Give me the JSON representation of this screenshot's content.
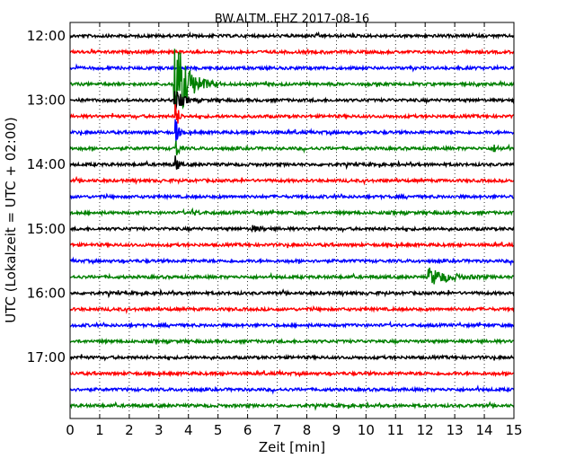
{
  "chart_data": {
    "type": "line",
    "title": "BW.ALTM..EHZ 2017-08-16",
    "xlabel": "Zeit  [min]",
    "ylabel": "UTC (Lokalzeit = UTC + 02:00)",
    "xlim": [
      0,
      15
    ],
    "x_ticks": [
      "0",
      "1",
      "2",
      "3",
      "4",
      "5",
      "6",
      "7",
      "8",
      "9",
      "10",
      "11",
      "12",
      "13",
      "14",
      "15"
    ],
    "y_ticks": [
      "12:00",
      "13:00",
      "14:00",
      "15:00",
      "16:00",
      "17:00"
    ],
    "grid": true,
    "traces_per_hour": 4,
    "trace_start_minutes": [
      0,
      15,
      30,
      45,
      60,
      75,
      90,
      105,
      120,
      135,
      150,
      165,
      180,
      195,
      210,
      225,
      240,
      255,
      270,
      285,
      300,
      315,
      330,
      345
    ],
    "trace_colors": [
      "#000000",
      "#ff0000",
      "#0000ff",
      "#008000"
    ],
    "events": [
      {
        "trace": 3,
        "start_min": 3.5,
        "duration_min": 1.6,
        "peak": 60
      },
      {
        "trace": 4,
        "start_min": 3.5,
        "duration_min": 1.0,
        "peak": 14
      },
      {
        "trace": 5,
        "start_min": 3.55,
        "duration_min": 0.3,
        "peak": 26
      },
      {
        "trace": 6,
        "start_min": 3.55,
        "duration_min": 0.3,
        "peak": 24
      },
      {
        "trace": 7,
        "start_min": 3.55,
        "duration_min": 0.3,
        "peak": 22
      },
      {
        "trace": 8,
        "start_min": 3.55,
        "duration_min": 0.3,
        "peak": 14
      },
      {
        "trace": 15,
        "start_min": 12.1,
        "duration_min": 2.5,
        "peak": 10
      },
      {
        "trace": 12,
        "start_min": 6.1,
        "duration_min": 1.0,
        "peak": 4
      },
      {
        "trace": 11,
        "start_min": 4.1,
        "duration_min": 0.8,
        "peak": 3
      },
      {
        "trace": 7,
        "start_min": 14.3,
        "duration_min": 0.7,
        "peak": 4
      }
    ]
  }
}
